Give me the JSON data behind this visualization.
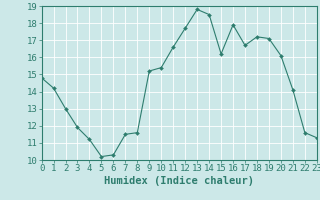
{
  "xlabel": "Humidex (Indice chaleur)",
  "ylabel": "",
  "x_values": [
    0,
    1,
    2,
    3,
    4,
    5,
    6,
    7,
    8,
    9,
    10,
    11,
    12,
    13,
    14,
    15,
    16,
    17,
    18,
    19,
    20,
    21,
    22,
    23
  ],
  "y_values": [
    14.8,
    14.2,
    13.0,
    11.9,
    11.2,
    10.2,
    10.3,
    11.5,
    11.6,
    15.2,
    15.4,
    16.6,
    17.7,
    18.8,
    18.5,
    16.2,
    17.9,
    16.7,
    17.2,
    17.1,
    16.1,
    14.1,
    11.6,
    11.3
  ],
  "ylim": [
    10,
    19
  ],
  "xlim": [
    0,
    23
  ],
  "yticks": [
    10,
    11,
    12,
    13,
    14,
    15,
    16,
    17,
    18,
    19
  ],
  "xticks": [
    0,
    1,
    2,
    3,
    4,
    5,
    6,
    7,
    8,
    9,
    10,
    11,
    12,
    13,
    14,
    15,
    16,
    17,
    18,
    19,
    20,
    21,
    22,
    23
  ],
  "line_color": "#2e7d6e",
  "marker_color": "#2e7d6e",
  "bg_color": "#cce8e8",
  "grid_color": "#ffffff",
  "axes_color": "#2e7d6e",
  "tick_label_color": "#2e7d6e",
  "xlabel_color": "#2e7d6e",
  "font_size": 6.5,
  "xlabel_font_size": 7.5
}
